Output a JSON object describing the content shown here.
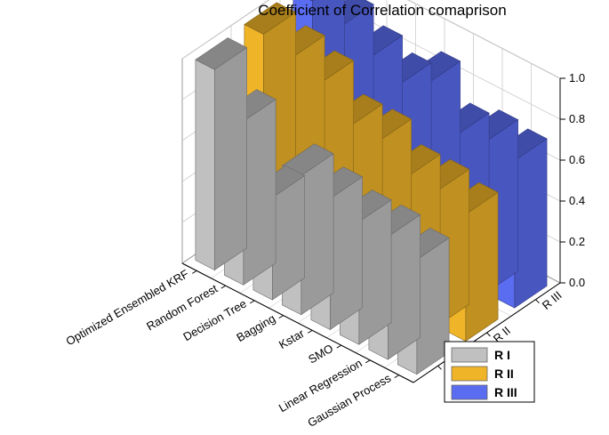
{
  "chart_data": {
    "type": "bar",
    "title": "Coefficient of Correlation comaprison",
    "categories": [
      "Optimized Ensembled KRF",
      "Random Forest",
      "Decision Tree",
      "Bagging",
      "Kstar",
      "SMO",
      "Linear Regression",
      "Gaussian Process"
    ],
    "series": [
      {
        "name": "R I",
        "color": "#c0c0c0",
        "values": [
          0.98,
          0.8,
          0.5,
          0.68,
          0.64,
          0.6,
          0.6,
          0.56
        ]
      },
      {
        "name": "R II",
        "color": "#f0b428",
        "values": [
          0.99,
          0.95,
          0.9,
          0.76,
          0.76,
          0.66,
          0.66,
          0.62
        ]
      },
      {
        "name": "R III",
        "color": "#5a6cf0",
        "values": [
          0.99,
          0.94,
          0.86,
          0.8,
          0.88,
          0.7,
          0.74,
          0.72
        ]
      }
    ],
    "zlim": [
      0.0,
      1.0
    ],
    "zticks": [
      "0.0",
      "0.2",
      "0.4",
      "0.6",
      "0.8",
      "1.0"
    ],
    "legend_position": "bottom-right",
    "grid": true
  }
}
